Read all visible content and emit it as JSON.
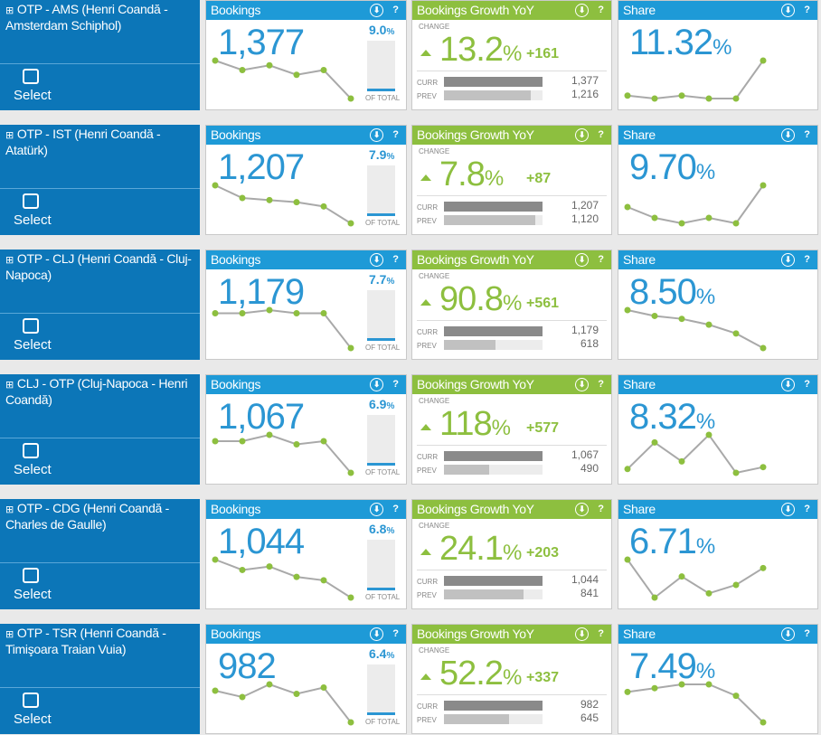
{
  "panel_titles": {
    "bookings": "Bookings",
    "growth": "Bookings Growth YoY",
    "share": "Share"
  },
  "labels": {
    "select": "Select",
    "of_total": "OF TOTAL",
    "change": "CHANGE",
    "curr": "CURR",
    "prev": "PREV",
    "percent": "%"
  },
  "icons": {
    "download": "download-icon",
    "help": "help-icon",
    "expand": "expand-icon"
  },
  "colors": {
    "route_bg": "#0c76b8",
    "blue": "#2b96d3",
    "green": "#8dbf3f"
  },
  "rows": [
    {
      "route": "OTP - AMS (Henri Coandă - Amsterdam Schiphol)",
      "bookings": "1,377",
      "of_total_pct": "9.0",
      "of_total_value": 9.0,
      "bookings_trend": [
        5,
        3,
        4,
        2,
        3,
        -3
      ],
      "growth_pct": "13.2",
      "growth_abs": "+161",
      "curr": "1,377",
      "prev": "1,216",
      "curr_value": 1377,
      "prev_value": 1216,
      "share": "11.32",
      "share_trend": [
        2,
        1,
        2,
        1,
        1,
        14
      ]
    },
    {
      "route": "OTP - IST (Henri Coandă - Atatürk)",
      "bookings": "1,207",
      "of_total_pct": "7.9",
      "of_total_value": 7.9,
      "bookings_trend": [
        6,
        3,
        2.5,
        2,
        1,
        -3
      ],
      "growth_pct": "7.8",
      "growth_abs": "+87",
      "curr": "1,207",
      "prev": "1,120",
      "curr_value": 1207,
      "prev_value": 1120,
      "share": "9.70",
      "share_trend": [
        4,
        2,
        1,
        2,
        1,
        8
      ]
    },
    {
      "route": "OTP - CLJ (Henri Coandă - Cluj-Napoca)",
      "bookings": "1,179",
      "of_total_pct": "7.7",
      "of_total_value": 7.7,
      "bookings_trend": [
        4,
        4,
        5,
        4,
        4,
        -7
      ],
      "growth_pct": "90.8",
      "growth_abs": "+561",
      "curr": "1,179",
      "prev": "618",
      "curr_value": 1179,
      "prev_value": 618,
      "share": "8.50",
      "share_trend": [
        8,
        6,
        5,
        3,
        0,
        -5
      ]
    },
    {
      "route": "CLJ - OTP (Cluj-Napoca - Henri Coandă)",
      "bookings": "1,067",
      "of_total_pct": "6.9",
      "of_total_value": 6.9,
      "bookings_trend": [
        4,
        4,
        6,
        3,
        4,
        -6
      ],
      "growth_pct": "118",
      "growth_abs": "+577",
      "curr": "1,067",
      "prev": "490",
      "curr_value": 1067,
      "prev_value": 490,
      "share": "8.32",
      "share_trend": [
        1,
        8,
        3,
        10,
        0,
        1.5
      ]
    },
    {
      "route": "OTP - CDG (Henri Coandă - Charles de Gaulle)",
      "bookings": "1,044",
      "of_total_pct": "6.8",
      "of_total_value": 6.8,
      "bookings_trend": [
        7,
        4,
        5,
        2,
        1,
        -4
      ],
      "growth_pct": "24.1",
      "growth_abs": "+203",
      "curr": "1,044",
      "prev": "841",
      "curr_value": 1044,
      "prev_value": 841,
      "share": "6.71",
      "share_trend": [
        9,
        0,
        5,
        1,
        3,
        7
      ]
    },
    {
      "route": "OTP - TSR (Henri Coandă - Timişoara Traian Vuia)",
      "bookings": "982",
      "of_total_pct": "6.4",
      "of_total_value": 6.4,
      "bookings_trend": [
        6,
        4,
        8,
        5,
        7,
        -4
      ],
      "growth_pct": "52.2",
      "growth_abs": "+337",
      "curr": "982",
      "prev": "645",
      "curr_value": 982,
      "prev_value": 645,
      "share": "7.49",
      "share_trend": [
        6,
        7,
        8,
        8,
        5,
        -2
      ]
    }
  ]
}
